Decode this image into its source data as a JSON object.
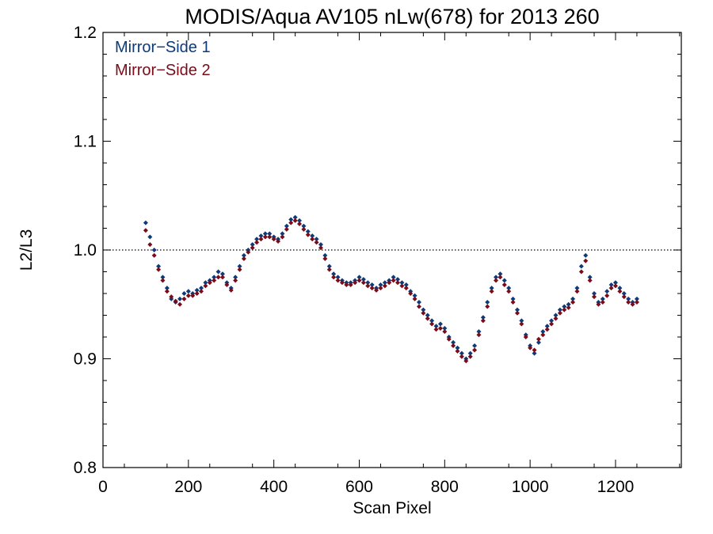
{
  "chart_data": {
    "type": "scatter",
    "title": "MODIS/Aqua AV105 nLw(678) for 2013 260",
    "xlabel": "Scan Pixel",
    "ylabel": "L2/L3",
    "xlim": [
      0,
      1354
    ],
    "ylim": [
      0.8,
      1.2
    ],
    "x_ticks": [
      0,
      200,
      400,
      600,
      800,
      1000,
      1200
    ],
    "x_tick_labels": [
      "0",
      "200",
      "400",
      "600",
      "800",
      "1000",
      "1200"
    ],
    "y_ticks": [
      0.8,
      0.9,
      1.0,
      1.1,
      1.2
    ],
    "y_tick_labels": [
      "0.8",
      "0.9",
      "1.0",
      "1.1",
      "1.2"
    ],
    "reference_line": 1.0,
    "legend_position": "top-left",
    "colors": {
      "series1": "#0d3a78",
      "series2": "#7a0c1a"
    },
    "series": [
      {
        "name": "Mirror−Side 1",
        "points": [
          [
            100,
            1.025
          ],
          [
            110,
            1.012
          ],
          [
            120,
            1.0
          ],
          [
            130,
            0.985
          ],
          [
            140,
            0.975
          ],
          [
            150,
            0.965
          ],
          [
            160,
            0.955
          ],
          [
            170,
            0.952
          ],
          [
            180,
            0.955
          ],
          [
            190,
            0.96
          ],
          [
            200,
            0.962
          ],
          [
            210,
            0.96
          ],
          [
            220,
            0.963
          ],
          [
            230,
            0.965
          ],
          [
            240,
            0.97
          ],
          [
            250,
            0.972
          ],
          [
            260,
            0.975
          ],
          [
            270,
            0.98
          ],
          [
            280,
            0.978
          ],
          [
            290,
            0.97
          ],
          [
            300,
            0.965
          ],
          [
            310,
            0.975
          ],
          [
            320,
            0.985
          ],
          [
            330,
            0.995
          ],
          [
            340,
            1.0
          ],
          [
            350,
            1.005
          ],
          [
            360,
            1.01
          ],
          [
            370,
            1.013
          ],
          [
            380,
            1.015
          ],
          [
            390,
            1.015
          ],
          [
            400,
            1.012
          ],
          [
            410,
            1.01
          ],
          [
            420,
            1.015
          ],
          [
            430,
            1.022
          ],
          [
            440,
            1.028
          ],
          [
            450,
            1.03
          ],
          [
            460,
            1.027
          ],
          [
            470,
            1.022
          ],
          [
            480,
            1.017
          ],
          [
            490,
            1.013
          ],
          [
            500,
            1.01
          ],
          [
            510,
            1.005
          ],
          [
            520,
            0.995
          ],
          [
            530,
            0.985
          ],
          [
            540,
            0.978
          ],
          [
            550,
            0.975
          ],
          [
            560,
            0.972
          ],
          [
            570,
            0.97
          ],
          [
            580,
            0.97
          ],
          [
            590,
            0.972
          ],
          [
            600,
            0.975
          ],
          [
            610,
            0.973
          ],
          [
            620,
            0.97
          ],
          [
            630,
            0.968
          ],
          [
            640,
            0.965
          ],
          [
            650,
            0.968
          ],
          [
            660,
            0.97
          ],
          [
            670,
            0.972
          ],
          [
            680,
            0.975
          ],
          [
            690,
            0.973
          ],
          [
            700,
            0.97
          ],
          [
            710,
            0.968
          ],
          [
            720,
            0.962
          ],
          [
            730,
            0.958
          ],
          [
            740,
            0.952
          ],
          [
            750,
            0.945
          ],
          [
            760,
            0.94
          ],
          [
            770,
            0.935
          ],
          [
            780,
            0.93
          ],
          [
            790,
            0.932
          ],
          [
            800,
            0.928
          ],
          [
            810,
            0.92
          ],
          [
            820,
            0.915
          ],
          [
            830,
            0.91
          ],
          [
            840,
            0.905
          ],
          [
            850,
            0.9
          ],
          [
            860,
            0.905
          ],
          [
            870,
            0.912
          ],
          [
            880,
            0.925
          ],
          [
            890,
            0.938
          ],
          [
            900,
            0.952
          ],
          [
            910,
            0.965
          ],
          [
            920,
            0.975
          ],
          [
            930,
            0.978
          ],
          [
            940,
            0.972
          ],
          [
            950,
            0.965
          ],
          [
            960,
            0.955
          ],
          [
            970,
            0.945
          ],
          [
            980,
            0.935
          ],
          [
            990,
            0.922
          ],
          [
            1000,
            0.912
          ],
          [
            1010,
            0.905
          ],
          [
            1020,
            0.915
          ],
          [
            1030,
            0.925
          ],
          [
            1040,
            0.93
          ],
          [
            1050,
            0.935
          ],
          [
            1060,
            0.94
          ],
          [
            1070,
            0.945
          ],
          [
            1080,
            0.948
          ],
          [
            1090,
            0.95
          ],
          [
            1100,
            0.955
          ],
          [
            1110,
            0.965
          ],
          [
            1120,
            0.985
          ],
          [
            1130,
            0.995
          ],
          [
            1140,
            0.975
          ],
          [
            1150,
            0.96
          ],
          [
            1160,
            0.952
          ],
          [
            1170,
            0.955
          ],
          [
            1180,
            0.962
          ],
          [
            1190,
            0.968
          ],
          [
            1200,
            0.97
          ],
          [
            1210,
            0.965
          ],
          [
            1220,
            0.96
          ],
          [
            1230,
            0.955
          ],
          [
            1240,
            0.952
          ],
          [
            1250,
            0.955
          ]
        ]
      },
      {
        "name": "Mirror−Side 2",
        "points": [
          [
            100,
            1.018
          ],
          [
            110,
            1.005
          ],
          [
            120,
            0.995
          ],
          [
            130,
            0.982
          ],
          [
            140,
            0.972
          ],
          [
            150,
            0.962
          ],
          [
            160,
            0.957
          ],
          [
            170,
            0.953
          ],
          [
            180,
            0.95
          ],
          [
            190,
            0.955
          ],
          [
            200,
            0.958
          ],
          [
            210,
            0.958
          ],
          [
            220,
            0.96
          ],
          [
            230,
            0.962
          ],
          [
            240,
            0.967
          ],
          [
            250,
            0.97
          ],
          [
            260,
            0.972
          ],
          [
            270,
            0.975
          ],
          [
            280,
            0.975
          ],
          [
            290,
            0.968
          ],
          [
            300,
            0.963
          ],
          [
            310,
            0.972
          ],
          [
            320,
            0.982
          ],
          [
            330,
            0.992
          ],
          [
            340,
            0.998
          ],
          [
            350,
            1.002
          ],
          [
            360,
            1.007
          ],
          [
            370,
            1.01
          ],
          [
            380,
            1.012
          ],
          [
            390,
            1.012
          ],
          [
            400,
            1.01
          ],
          [
            410,
            1.008
          ],
          [
            420,
            1.012
          ],
          [
            430,
            1.019
          ],
          [
            440,
            1.025
          ],
          [
            450,
            1.027
          ],
          [
            460,
            1.024
          ],
          [
            470,
            1.019
          ],
          [
            480,
            1.014
          ],
          [
            490,
            1.01
          ],
          [
            500,
            1.007
          ],
          [
            510,
            1.002
          ],
          [
            520,
            0.992
          ],
          [
            530,
            0.982
          ],
          [
            540,
            0.975
          ],
          [
            550,
            0.972
          ],
          [
            560,
            0.97
          ],
          [
            570,
            0.968
          ],
          [
            580,
            0.968
          ],
          [
            590,
            0.97
          ],
          [
            600,
            0.972
          ],
          [
            610,
            0.97
          ],
          [
            620,
            0.967
          ],
          [
            630,
            0.965
          ],
          [
            640,
            0.963
          ],
          [
            650,
            0.965
          ],
          [
            660,
            0.967
          ],
          [
            670,
            0.97
          ],
          [
            680,
            0.972
          ],
          [
            690,
            0.97
          ],
          [
            700,
            0.967
          ],
          [
            710,
            0.965
          ],
          [
            720,
            0.96
          ],
          [
            730,
            0.955
          ],
          [
            740,
            0.948
          ],
          [
            750,
            0.942
          ],
          [
            760,
            0.937
          ],
          [
            770,
            0.932
          ],
          [
            780,
            0.927
          ],
          [
            790,
            0.928
          ],
          [
            800,
            0.925
          ],
          [
            810,
            0.918
          ],
          [
            820,
            0.912
          ],
          [
            830,
            0.907
          ],
          [
            840,
            0.902
          ],
          [
            850,
            0.898
          ],
          [
            860,
            0.902
          ],
          [
            870,
            0.908
          ],
          [
            880,
            0.922
          ],
          [
            890,
            0.935
          ],
          [
            900,
            0.948
          ],
          [
            910,
            0.962
          ],
          [
            920,
            0.972
          ],
          [
            930,
            0.975
          ],
          [
            940,
            0.968
          ],
          [
            950,
            0.962
          ],
          [
            960,
            0.952
          ],
          [
            970,
            0.942
          ],
          [
            980,
            0.932
          ],
          [
            990,
            0.92
          ],
          [
            1000,
            0.91
          ],
          [
            1010,
            0.908
          ],
          [
            1020,
            0.918
          ],
          [
            1030,
            0.922
          ],
          [
            1040,
            0.927
          ],
          [
            1050,
            0.932
          ],
          [
            1060,
            0.937
          ],
          [
            1070,
            0.942
          ],
          [
            1080,
            0.945
          ],
          [
            1090,
            0.947
          ],
          [
            1100,
            0.952
          ],
          [
            1110,
            0.962
          ],
          [
            1120,
            0.98
          ],
          [
            1130,
            0.99
          ],
          [
            1140,
            0.972
          ],
          [
            1150,
            0.957
          ],
          [
            1160,
            0.95
          ],
          [
            1170,
            0.952
          ],
          [
            1180,
            0.958
          ],
          [
            1190,
            0.965
          ],
          [
            1200,
            0.967
          ],
          [
            1210,
            0.962
          ],
          [
            1220,
            0.957
          ],
          [
            1230,
            0.952
          ],
          [
            1240,
            0.95
          ],
          [
            1250,
            0.952
          ]
        ]
      }
    ]
  }
}
